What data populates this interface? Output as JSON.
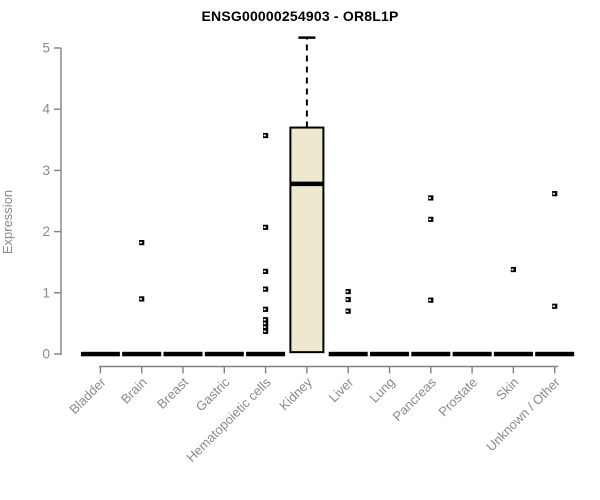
{
  "chart_data": {
    "type": "box",
    "title": "ENSG00000254903 - OR8L1P",
    "xlabel": "",
    "ylabel": "Expression",
    "ylim": [
      0,
      5
    ],
    "yticks": [
      0,
      1,
      2,
      3,
      4,
      5
    ],
    "grid": false,
    "legend": "none",
    "categories": [
      "Bladder",
      "Brain",
      "Breast",
      "Gastric",
      "Hematopoietic cells",
      "Kidney",
      "Liver",
      "Lung",
      "Pancreas",
      "Prostate",
      "Skin",
      "Unknown / Other"
    ],
    "boxes": [
      {
        "q1": 0,
        "median": 0,
        "q3": 0,
        "whisker_low": 0,
        "whisker_high": 0,
        "outliers": []
      },
      {
        "q1": 0,
        "median": 0,
        "q3": 0,
        "whisker_low": 0,
        "whisker_high": 0,
        "outliers": [
          1.82,
          0.9
        ]
      },
      {
        "q1": 0,
        "median": 0,
        "q3": 0,
        "whisker_low": 0,
        "whisker_high": 0,
        "outliers": []
      },
      {
        "q1": 0,
        "median": 0,
        "q3": 0,
        "whisker_low": 0,
        "whisker_high": 0,
        "outliers": []
      },
      {
        "q1": 0,
        "median": 0,
        "q3": 0,
        "whisker_low": 0,
        "whisker_high": 0,
        "outliers": [
          3.57,
          2.07,
          1.35,
          1.06,
          0.73,
          0.56,
          0.5,
          0.44,
          0.37
        ]
      },
      {
        "q1": 0.03,
        "median": 2.78,
        "q3": 3.7,
        "whisker_low": 0.03,
        "whisker_high": 5.17,
        "outliers": []
      },
      {
        "q1": 0,
        "median": 0,
        "q3": 0,
        "whisker_low": 0,
        "whisker_high": 0,
        "outliers": [
          1.02,
          0.89,
          0.7
        ]
      },
      {
        "q1": 0,
        "median": 0,
        "q3": 0,
        "whisker_low": 0,
        "whisker_high": 0,
        "outliers": []
      },
      {
        "q1": 0,
        "median": 0,
        "q3": 0,
        "whisker_low": 0,
        "whisker_high": 0,
        "outliers": [
          2.55,
          2.2,
          0.88
        ]
      },
      {
        "q1": 0,
        "median": 0,
        "q3": 0,
        "whisker_low": 0,
        "whisker_high": 0,
        "outliers": []
      },
      {
        "q1": 0,
        "median": 0,
        "q3": 0,
        "whisker_low": 0,
        "whisker_high": 0,
        "outliers": [
          1.38
        ]
      },
      {
        "q1": 0,
        "median": 0,
        "q3": 0,
        "whisker_low": 0,
        "whisker_high": 0,
        "outliers": [
          2.62,
          0.78
        ]
      }
    ],
    "colors": {
      "box_fill": "#EDE8CE",
      "box_stroke": "#000000",
      "median": "#000000",
      "outlier": "#000000",
      "axis": "#828282",
      "tick_label": "#8a8a8a",
      "title": "#000000"
    }
  }
}
